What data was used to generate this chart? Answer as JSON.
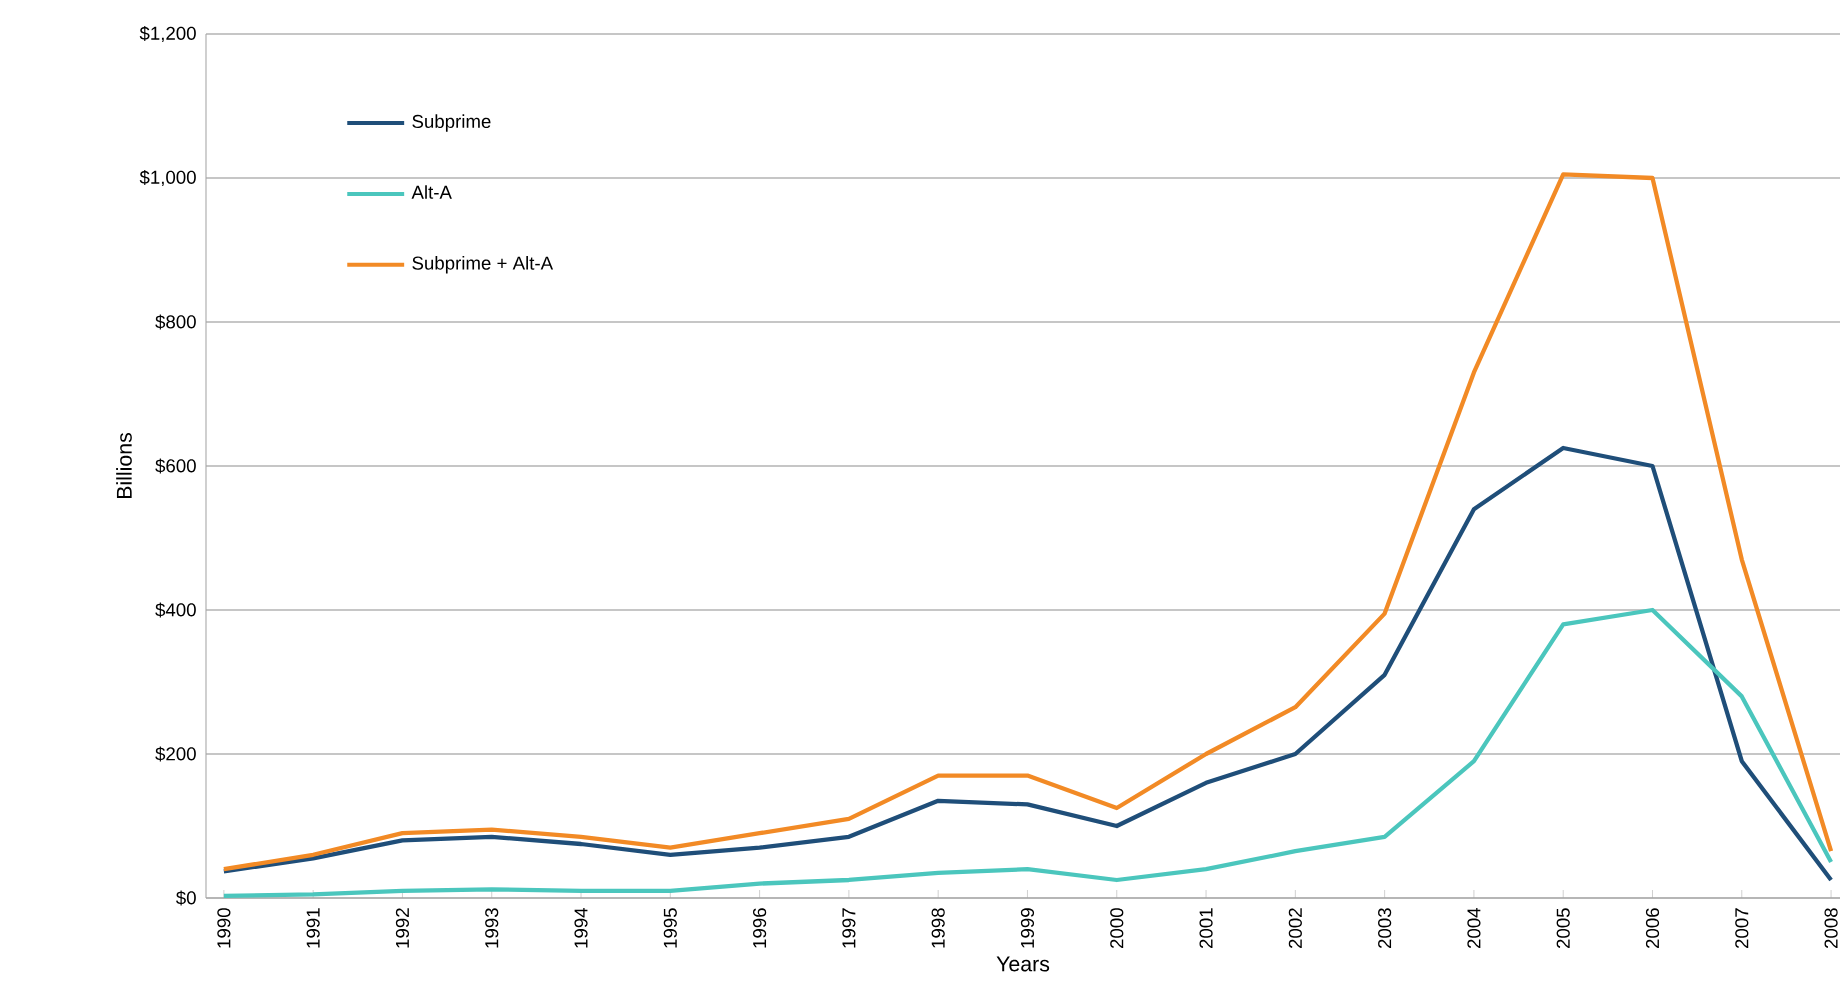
{
  "chart_data": {
    "type": "line",
    "xlabel": "Years",
    "ylabel": "Billions",
    "categories": [
      "1990",
      "1991",
      "1992",
      "1993",
      "1994",
      "1995",
      "1996",
      "1997",
      "1998",
      "1999",
      "2000",
      "2001",
      "2002",
      "2003",
      "2004",
      "2005",
      "2006",
      "2007",
      "2008"
    ],
    "series": [
      {
        "name": "Subprime",
        "color": "#1f4e79",
        "values": [
          37,
          55,
          80,
          85,
          75,
          60,
          70,
          85,
          135,
          130,
          100,
          160,
          200,
          310,
          540,
          625,
          600,
          190,
          25
        ]
      },
      {
        "name": "Alt-A",
        "color": "#4bc6bd",
        "values": [
          3,
          5,
          10,
          12,
          10,
          10,
          20,
          25,
          35,
          40,
          25,
          40,
          65,
          85,
          190,
          380,
          400,
          280,
          50
        ]
      },
      {
        "name": "Subprime + Alt-A",
        "color": "#f28a25",
        "values": [
          40,
          60,
          90,
          95,
          85,
          70,
          90,
          110,
          170,
          170,
          125,
          200,
          265,
          395,
          730,
          1005,
          1000,
          470,
          65
        ]
      }
    ],
    "ylim": [
      0,
      1200
    ],
    "yticks": [
      {
        "value": 0,
        "label": "$0"
      },
      {
        "value": 200,
        "label": "$200"
      },
      {
        "value": 400,
        "label": "$400"
      },
      {
        "value": 600,
        "label": "$600"
      },
      {
        "value": 800,
        "label": "$800"
      },
      {
        "value": 1000,
        "label": "$1,000"
      },
      {
        "value": 1200,
        "label": "$1,200"
      }
    ],
    "grid": "y",
    "legend": "top left",
    "marker": "none",
    "line_style": "solid"
  }
}
